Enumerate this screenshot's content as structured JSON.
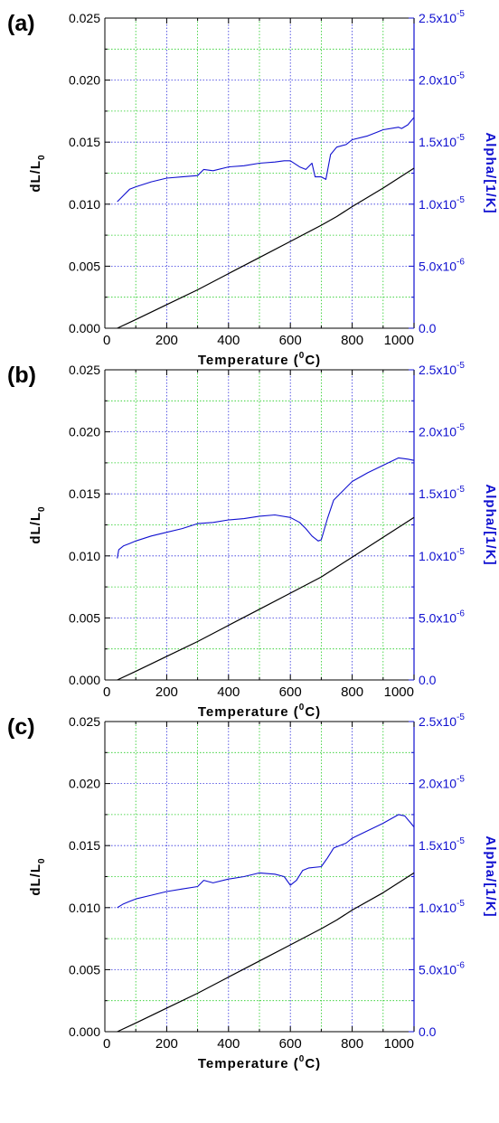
{
  "chart_data": [
    {
      "type": "line",
      "panel_label": "(a)",
      "xlabel": "Temperature (",
      "xlabel_sup": "0",
      "xlabel_end": "C)",
      "ylabel": "dL/L",
      "ylabel_sub": "0",
      "y2label": "Alpha/[1/K]",
      "xlim": [
        0,
        1000
      ],
      "ylim": [
        0,
        0.025
      ],
      "y2lim": [
        0,
        2.5e-05
      ],
      "grid": true,
      "x_ticks": [
        "0",
        "200",
        "400",
        "600",
        "800",
        "1000"
      ],
      "y_ticks": [
        "0.000",
        "0.005",
        "0.010",
        "0.015",
        "0.020",
        "0.025"
      ],
      "y2_ticks": [
        {
          "mantissa": "0.0",
          "exp": ""
        },
        {
          "mantissa": "5.0x10",
          "exp": "-6"
        },
        {
          "mantissa": "1.0x10",
          "exp": "-5"
        },
        {
          "mantissa": "1.5x10",
          "exp": "-5"
        },
        {
          "mantissa": "2.0x10",
          "exp": "-5"
        },
        {
          "mantissa": "2.5x10",
          "exp": "-5"
        }
      ],
      "series": [
        {
          "axis": "left",
          "color": "#000000",
          "x": [
            40,
            100,
            200,
            300,
            400,
            500,
            600,
            700,
            750,
            800,
            900,
            1000
          ],
          "y": [
            0.0,
            0.0007,
            0.0019,
            0.0031,
            0.0044,
            0.0057,
            0.007,
            0.0083,
            0.009,
            0.0098,
            0.0113,
            0.0129
          ]
        },
        {
          "axis": "right",
          "color": "#1010d0",
          "x": [
            40,
            60,
            80,
            100,
            150,
            200,
            250,
            300,
            320,
            350,
            400,
            450,
            500,
            550,
            580,
            600,
            630,
            650,
            670,
            680,
            700,
            715,
            730,
            750,
            780,
            800,
            850,
            880,
            900,
            950,
            960,
            980,
            1000
          ],
          "y": [
            1.02e-05,
            1.07e-05,
            1.12e-05,
            1.14e-05,
            1.18e-05,
            1.21e-05,
            1.22e-05,
            1.23e-05,
            1.28e-05,
            1.27e-05,
            1.3e-05,
            1.31e-05,
            1.33e-05,
            1.34e-05,
            1.35e-05,
            1.35e-05,
            1.3e-05,
            1.28e-05,
            1.33e-05,
            1.22e-05,
            1.22e-05,
            1.2e-05,
            1.4e-05,
            1.46e-05,
            1.48e-05,
            1.52e-05,
            1.55e-05,
            1.58e-05,
            1.6e-05,
            1.62e-05,
            1.61e-05,
            1.64e-05,
            1.7e-05
          ]
        }
      ]
    },
    {
      "type": "line",
      "panel_label": "(b)",
      "xlabel": "Temperature (",
      "xlabel_sup": "0",
      "xlabel_end": "C)",
      "ylabel": "dL/L",
      "ylabel_sub": "0",
      "y2label": "Alpha/[1/K]",
      "xlim": [
        0,
        1000
      ],
      "ylim": [
        0,
        0.025
      ],
      "y2lim": [
        0,
        2.5e-05
      ],
      "grid": true,
      "x_ticks": [
        "0",
        "200",
        "400",
        "600",
        "800",
        "1000"
      ],
      "y_ticks": [
        "0.000",
        "0.005",
        "0.010",
        "0.015",
        "0.020",
        "0.025"
      ],
      "y2_ticks": [
        {
          "mantissa": "0.0",
          "exp": ""
        },
        {
          "mantissa": "5.0x10",
          "exp": "-6"
        },
        {
          "mantissa": "1.0x10",
          "exp": "-5"
        },
        {
          "mantissa": "1.5x10",
          "exp": "-5"
        },
        {
          "mantissa": "2.0x10",
          "exp": "-5"
        },
        {
          "mantissa": "2.5x10",
          "exp": "-5"
        }
      ],
      "series": [
        {
          "axis": "left",
          "color": "#000000",
          "x": [
            40,
            100,
            200,
            300,
            400,
            500,
            600,
            700,
            750,
            800,
            900,
            1000
          ],
          "y": [
            0.0,
            0.0007,
            0.0019,
            0.0031,
            0.0044,
            0.0057,
            0.007,
            0.0083,
            0.0091,
            0.0099,
            0.0115,
            0.0131
          ]
        },
        {
          "axis": "right",
          "color": "#1010d0",
          "x": [
            40,
            45,
            60,
            80,
            100,
            150,
            200,
            250,
            300,
            350,
            400,
            450,
            500,
            550,
            600,
            630,
            650,
            670,
            690,
            700,
            720,
            740,
            760,
            800,
            850,
            900,
            950,
            980,
            1000
          ],
          "y": [
            9.8e-06,
            1.05e-05,
            1.08e-05,
            1.1e-05,
            1.12e-05,
            1.16e-05,
            1.19e-05,
            1.22e-05,
            1.26e-05,
            1.27e-05,
            1.29e-05,
            1.3e-05,
            1.32e-05,
            1.33e-05,
            1.31e-05,
            1.27e-05,
            1.22e-05,
            1.16e-05,
            1.12e-05,
            1.13e-05,
            1.3e-05,
            1.45e-05,
            1.5e-05,
            1.6e-05,
            1.67e-05,
            1.73e-05,
            1.79e-05,
            1.78e-05,
            1.77e-05
          ]
        }
      ]
    },
    {
      "type": "line",
      "panel_label": "(c)",
      "xlabel": "Temperature (",
      "xlabel_sup": "0",
      "xlabel_end": "C)",
      "ylabel": "dL/L",
      "ylabel_sub": "0",
      "y2label": "Alpha/[1/K]",
      "xlim": [
        0,
        1000
      ],
      "ylim": [
        0,
        0.025
      ],
      "y2lim": [
        0,
        2.5e-05
      ],
      "grid": true,
      "x_ticks": [
        "0",
        "200",
        "400",
        "600",
        "800",
        "1000"
      ],
      "y_ticks": [
        "0.000",
        "0.005",
        "0.010",
        "0.015",
        "0.020",
        "0.025"
      ],
      "y2_ticks": [
        {
          "mantissa": "0.0",
          "exp": ""
        },
        {
          "mantissa": "5.0x10",
          "exp": "-6"
        },
        {
          "mantissa": "1.0x10",
          "exp": "-5"
        },
        {
          "mantissa": "1.5x10",
          "exp": "-5"
        },
        {
          "mantissa": "2.0x10",
          "exp": "-5"
        },
        {
          "mantissa": "2.5x10",
          "exp": "-5"
        }
      ],
      "series": [
        {
          "axis": "left",
          "color": "#000000",
          "x": [
            40,
            100,
            200,
            300,
            400,
            500,
            600,
            700,
            750,
            800,
            900,
            1000
          ],
          "y": [
            0.0,
            0.0007,
            0.0019,
            0.0031,
            0.0044,
            0.0057,
            0.007,
            0.0083,
            0.009,
            0.0098,
            0.0112,
            0.0128
          ]
        },
        {
          "axis": "right",
          "color": "#1010d0",
          "x": [
            40,
            60,
            80,
            100,
            150,
            200,
            250,
            300,
            320,
            350,
            400,
            450,
            500,
            550,
            580,
            600,
            620,
            640,
            660,
            700,
            720,
            740,
            780,
            800,
            850,
            900,
            950,
            970,
            990,
            1000
          ],
          "y": [
            1e-05,
            1.03e-05,
            1.05e-05,
            1.07e-05,
            1.1e-05,
            1.13e-05,
            1.15e-05,
            1.17e-05,
            1.22e-05,
            1.2e-05,
            1.23e-05,
            1.25e-05,
            1.28e-05,
            1.27e-05,
            1.25e-05,
            1.18e-05,
            1.22e-05,
            1.3e-05,
            1.32e-05,
            1.33e-05,
            1.4e-05,
            1.48e-05,
            1.52e-05,
            1.56e-05,
            1.62e-05,
            1.68e-05,
            1.75e-05,
            1.74e-05,
            1.68e-05,
            1.65e-05
          ]
        }
      ]
    }
  ]
}
